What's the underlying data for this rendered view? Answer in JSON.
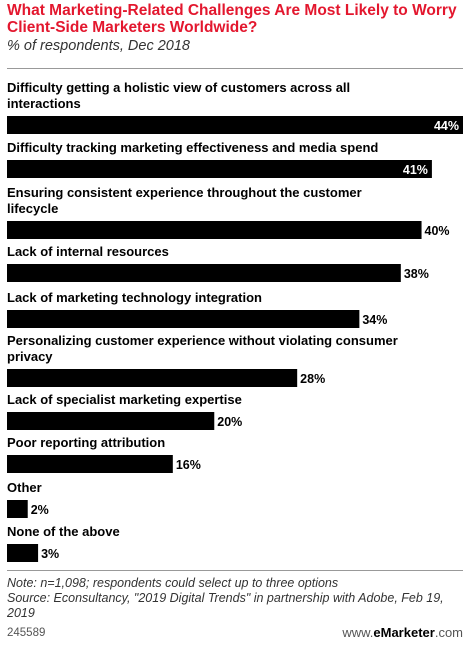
{
  "header": {
    "title": "What Marketing-Related Challenges Are Most Likely to Worry Client-Side Marketers Worldwide?",
    "subtitle": "% of respondents, Dec 2018"
  },
  "chart_data": {
    "type": "bar",
    "orientation": "horizontal",
    "unit": "%",
    "categories": [
      "Difficulty getting a holistic view of customers across all interactions",
      "Difficulty tracking marketing effectiveness and media spend",
      "Ensuring consistent experience throughout the customer lifecycle",
      "Lack of internal resources",
      "Lack of marketing technology integration",
      "Personalizing customer experience without violating consumer privacy",
      "Lack of specialist marketing expertise",
      "Poor reporting attribution",
      "Other",
      "None of the above"
    ],
    "category_lines": [
      [
        "Difficulty getting a holistic view of customers across all",
        "interactions"
      ],
      [
        "Difficulty tracking marketing effectiveness and media spend"
      ],
      [
        "Ensuring consistent experience throughout the customer",
        "lifecycle"
      ],
      [
        "Lack of internal resources"
      ],
      [
        "Lack of marketing technology integration"
      ],
      [
        "Personalizing customer experience without violating consumer",
        "privacy"
      ],
      [
        "Lack of specialist marketing expertise"
      ],
      [
        "Poor reporting attribution"
      ],
      [
        "Other"
      ],
      [
        "None of the above"
      ]
    ],
    "values": [
      44,
      41,
      40,
      38,
      34,
      28,
      20,
      16,
      2,
      3
    ],
    "value_labels": [
      "44%",
      "41%",
      "40%",
      "38%",
      "34%",
      "28%",
      "20%",
      "16%",
      "2%",
      "3%"
    ],
    "bar_color": "#000000",
    "xlim": [
      0,
      44
    ],
    "grid": false,
    "legend": "none"
  },
  "footer": {
    "note": "Note: n=1,098; respondents could select up to three options",
    "source": "Source: Econsultancy, \"2019 Digital Trends\" in partnership with Adobe, Feb 19, 2019",
    "chart_id": "245589",
    "brand_prefix": "www.",
    "brand_name": "eMarketer",
    "brand_suffix": ".com"
  }
}
